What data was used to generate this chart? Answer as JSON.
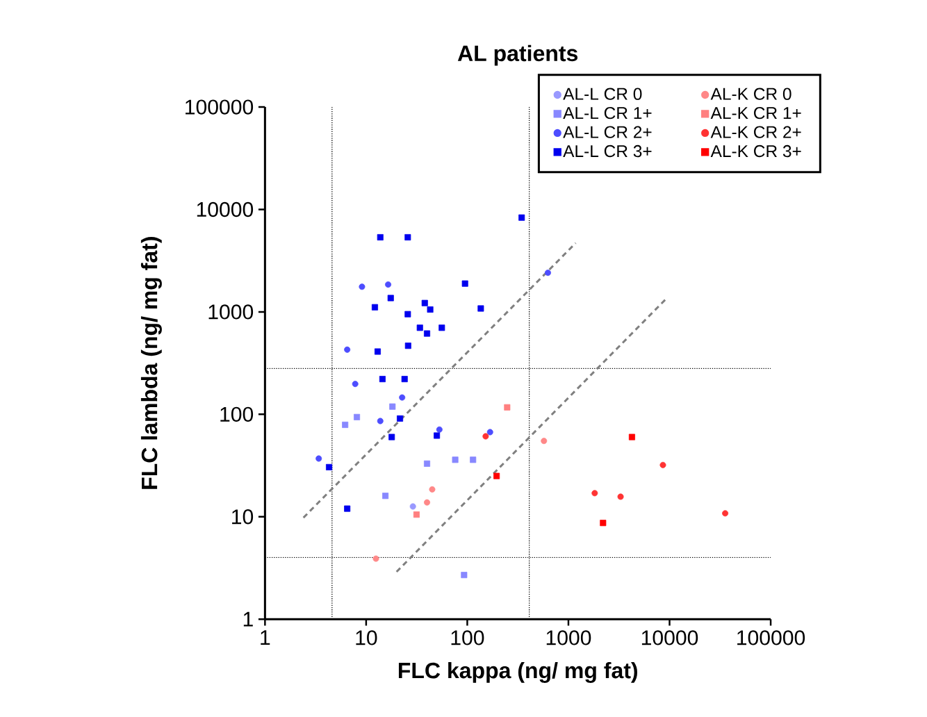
{
  "chart_data": {
    "type": "scatter",
    "title": "AL patients",
    "xlabel": "FLC kappa (ng/ mg fat)",
    "ylabel": "FLC lambda (ng/ mg fat)",
    "log": "xy",
    "xlim": [
      1,
      100000
    ],
    "ylim": [
      1,
      100000
    ],
    "xticks": [
      1,
      10,
      100,
      1000,
      10000,
      100000
    ],
    "yticks": [
      1,
      10,
      100,
      1000,
      10000,
      100000
    ],
    "grid": false,
    "legend": "top right",
    "ref_lines": [
      {
        "axis": "x",
        "value": 4.6,
        "color": "#000000",
        "line_style": "dotted"
      },
      {
        "axis": "x",
        "value": 410,
        "color": "#000000",
        "line_style": "dotted"
      },
      {
        "axis": "y",
        "value": 280,
        "color": "#000000",
        "line_style": "dotted"
      },
      {
        "axis": "y",
        "value": 4,
        "color": "#000000",
        "line_style": "dotted"
      }
    ],
    "series": [
      {
        "name": "AL-L CR 0",
        "type": "scatter",
        "marker": "circle",
        "color": "#9999ff",
        "x": [
          29
        ],
        "values": [
          12.6
        ]
      },
      {
        "name": "AL-K CR 0",
        "type": "scatter",
        "marker": "circle",
        "color": "#ff8888",
        "x": [
          12.5,
          40,
          45,
          573
        ],
        "values": [
          3.9,
          13.8,
          18.5,
          55
        ]
      },
      {
        "name": "AL-L CR 1+",
        "type": "scatter",
        "marker": "square",
        "color": "#8888ff",
        "x": [
          6.2,
          8.1,
          18.2,
          40,
          76,
          114,
          15.5,
          93
        ],
        "values": [
          79,
          94,
          119,
          33,
          36,
          36,
          16,
          2.7
        ]
      },
      {
        "name": "AL-K CR 1+",
        "type": "scatter",
        "marker": "square",
        "color": "#ff8080",
        "x": [
          31.5,
          248
        ],
        "values": [
          10.5,
          117
        ]
      },
      {
        "name": "AL-L CR 2+",
        "type": "scatter",
        "marker": "circle",
        "color": "#4d4dff",
        "x": [
          9.1,
          16.5,
          627,
          6.5,
          7.8,
          22.7,
          13.8,
          53,
          168,
          3.4
        ],
        "values": [
          1760,
          1850,
          2410,
          428,
          198,
          146,
          86,
          71,
          67,
          37
        ]
      },
      {
        "name": "AL-K CR 2+",
        "type": "scatter",
        "marker": "circle",
        "color": "#ff3333",
        "x": [
          152,
          8600,
          1820,
          3280,
          35500
        ],
        "values": [
          61,
          32,
          17,
          15.7,
          10.8
        ]
      },
      {
        "name": "AL-L CR 3+",
        "type": "scatter",
        "marker": "square",
        "color": "#0000ee",
        "x": [
          13.8,
          25.8,
          345,
          95,
          12.2,
          17.5,
          38,
          43,
          25.8,
          136,
          34,
          56,
          40,
          13,
          26,
          14.5,
          24,
          21.6,
          17.9,
          50,
          4.3,
          6.5
        ],
        "values": [
          5350,
          5350,
          8330,
          1890,
          1110,
          1365,
          1220,
          1055,
          950,
          1080,
          700,
          700,
          615,
          410,
          467,
          221,
          221,
          91,
          60,
          62,
          30.5,
          12
        ]
      },
      {
        "name": "AL-K CR 3+",
        "type": "scatter",
        "marker": "square",
        "color": "#ff0000",
        "x": [
          195,
          4250,
          2200
        ],
        "values": [
          25,
          60,
          8.7
        ]
      },
      {
        "type": "line",
        "color": "#808080",
        "line_style": "dashed",
        "x": [
          2.4,
          1180
        ],
        "values": [
          9.8,
          4700
        ]
      },
      {
        "type": "line",
        "color": "#808080",
        "line_style": "dashed",
        "x": [
          20,
          9100
        ],
        "values": [
          2.9,
          1320
        ]
      }
    ]
  }
}
